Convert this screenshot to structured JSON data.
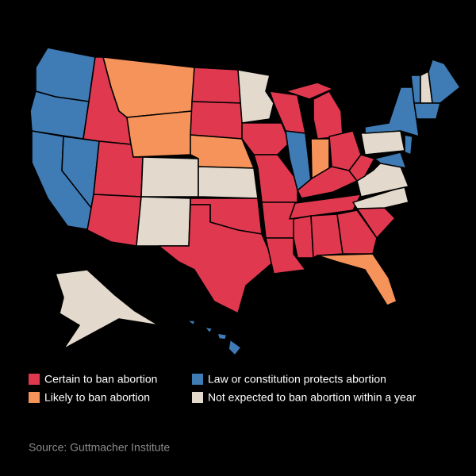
{
  "legend": [
    {
      "label": "Certain to ban abortion",
      "color": "#e0394f"
    },
    {
      "label": "Likely to ban abortion",
      "color": "#f5935a"
    },
    {
      "label": "Law or constitution protects abortion",
      "color": "#3f7bb5"
    },
    {
      "label": "Not expected to ban abortion within a year",
      "color": "#e3dacd"
    }
  ],
  "source": "Source: Guttmacher Institute"
}
